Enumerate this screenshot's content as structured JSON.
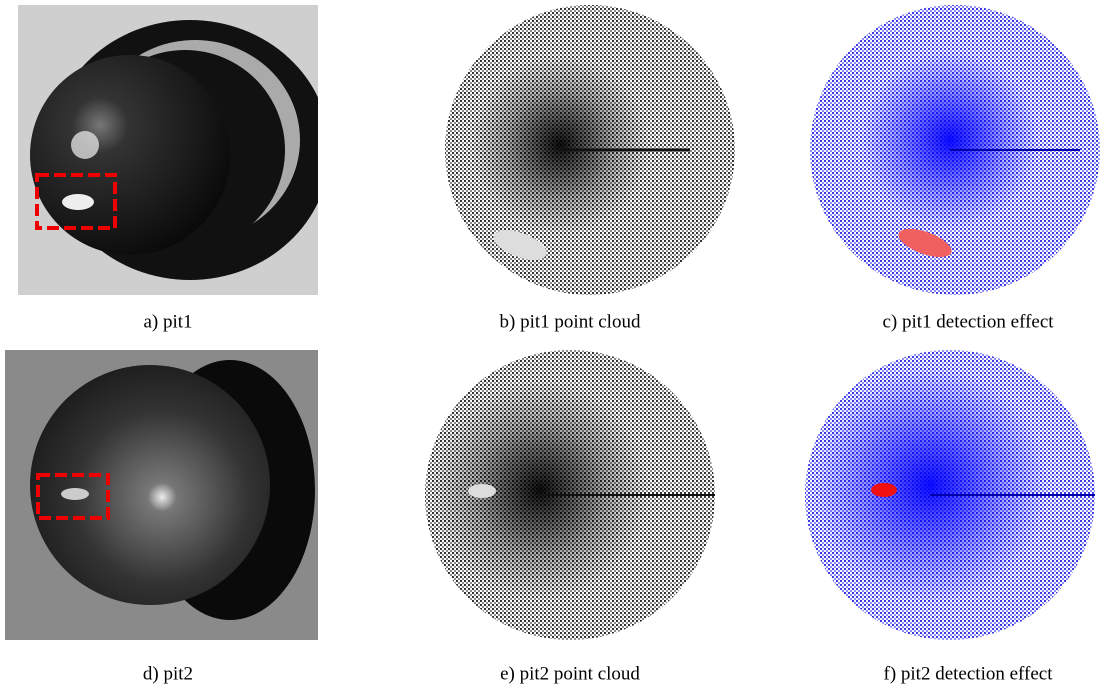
{
  "figure": {
    "panels": [
      {
        "caption": "a) pit1"
      },
      {
        "caption": "b) pit1 point cloud"
      },
      {
        "caption": "c) pit1 detection effect"
      },
      {
        "caption": "d) pit2"
      },
      {
        "caption": "e) pit2 point cloud"
      },
      {
        "caption": "f) pit2 detection effect"
      }
    ]
  }
}
